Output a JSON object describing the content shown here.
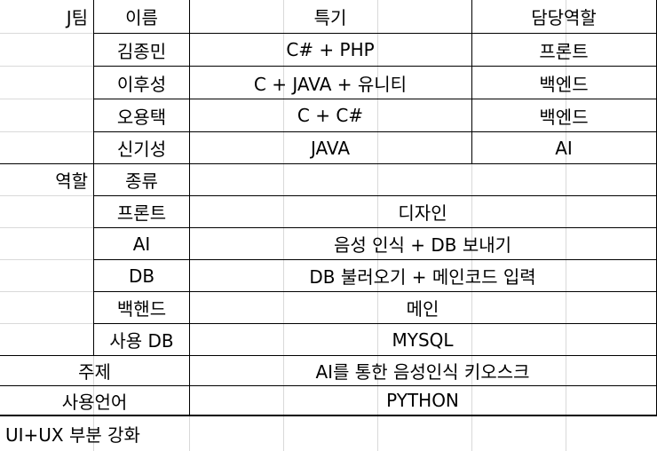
{
  "team": {
    "header": {
      "team": "J팀",
      "name": "이름",
      "skill": "특기",
      "role": "담당역할"
    },
    "members": [
      {
        "name": "김종민",
        "skill": "C# + PHP",
        "role": "프론트"
      },
      {
        "name": "이후성",
        "skill": "C + JAVA + 유니티",
        "role": "백엔드"
      },
      {
        "name": "오용택",
        "skill": "C + C#",
        "role": "백엔드"
      },
      {
        "name": "신기성",
        "skill": "JAVA",
        "role": "AI"
      }
    ]
  },
  "roles": {
    "header": {
      "label": "역할",
      "kind": "종류"
    },
    "items": [
      {
        "kind": "프론트",
        "desc": "디자인"
      },
      {
        "kind": "AI",
        "desc": "음성 인식 + DB 보내기"
      },
      {
        "kind": "DB",
        "desc": "DB 불러오기 + 메인코드 입력"
      },
      {
        "kind": "백핸드",
        "desc": "메인"
      },
      {
        "kind": "사용 DB",
        "desc": "MYSQL"
      }
    ]
  },
  "topic": {
    "label": "주제",
    "value": "AI를 통한 음성인식 키오스크"
  },
  "language": {
    "label": "사용언어",
    "value": "PYTHON"
  },
  "note": "UI+UX 부분 강화"
}
